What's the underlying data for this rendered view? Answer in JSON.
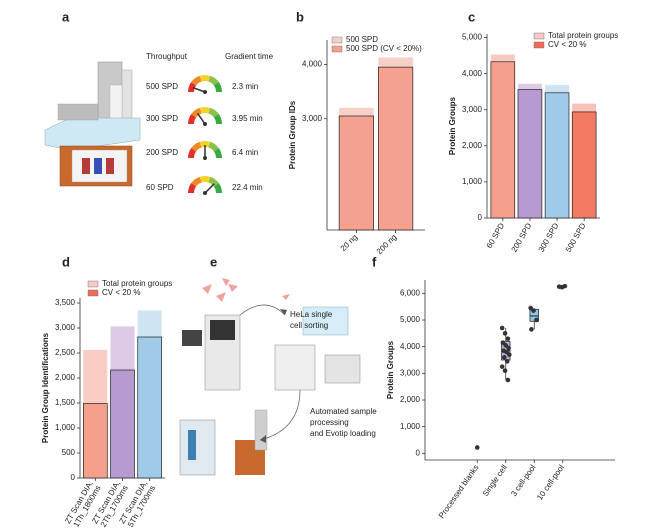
{
  "panel_labels": [
    "a",
    "b",
    "c",
    "d",
    "e",
    "f"
  ],
  "throughput": {
    "header": "Throughput",
    "gradient_header": "Gradient time",
    "rows": [
      {
        "spd": "500 SPD",
        "time": "2.3 min"
      },
      {
        "spd": "300 SPD",
        "time": "3.95 min"
      },
      {
        "spd": "200 SPD",
        "time": "6.4 min"
      },
      {
        "spd": "60 SPD",
        "time": "22.4 min"
      }
    ]
  },
  "workflow": {
    "sorting": [
      "HeLa single",
      "cell sorting"
    ],
    "processing": [
      "Automated sample",
      "processing",
      "and Evotip loading"
    ]
  },
  "chart_data": [
    {
      "type": "bar",
      "ylabel": "Protein Group IDs",
      "categories": [
        [
          "20 ng"
        ],
        [
          "200 ng"
        ]
      ],
      "series": [
        {
          "name": "500 SPD",
          "color": "#f6cfc6",
          "values": [
            3200,
            4130
          ]
        },
        {
          "name": "500 SPD (CV < 20%)",
          "color": "#f4a18f",
          "values": [
            3050,
            3950
          ]
        }
      ],
      "ylim": [
        950,
        4450
      ],
      "yticks": [
        {
          "value": 3000,
          "label": "3,000"
        },
        {
          "value": 4000,
          "label": "4,000"
        }
      ]
    },
    {
      "type": "bar",
      "ylabel": "Protein Groups",
      "categories": [
        [
          "60 SPD"
        ],
        [
          "200 SPD"
        ],
        [
          "300 SPD"
        ],
        [
          "500 SPD"
        ]
      ],
      "series": [
        {
          "name": "Total protein groups",
          "color": "#f6c9c4",
          "colors": [
            "#f8c9bf",
            "#dccbe6",
            "#cfe4f3",
            "#f8c2b6"
          ],
          "values": [
            4530,
            3720,
            3690,
            3170
          ]
        },
        {
          "name": "CV < 20 %",
          "color": "#ef6a5a",
          "colors": [
            "#f4a08d",
            "#b79bd0",
            "#9fcbe9",
            "#f17a60"
          ],
          "values": [
            4330,
            3560,
            3470,
            2940
          ]
        }
      ],
      "ylim": [
        0,
        5100
      ],
      "yticks": [
        0,
        {
          "value": 1000,
          "label": "1,000"
        },
        {
          "value": 2000,
          "label": "2,000"
        },
        {
          "value": 3000,
          "label": "3,000"
        },
        {
          "value": 4000,
          "label": "4,000"
        },
        {
          "value": 5000,
          "label": "5,000"
        }
      ]
    },
    {
      "type": "bar",
      "ylabel": "Protein Group Identifications",
      "categories": [
        [
          "ZT Scan DIA,",
          "1Th_1800ms"
        ],
        [
          "ZT Scan DIA,",
          "2Th_1700ms"
        ],
        [
          "ZT Scan DIA,",
          "5Th_1700ms"
        ]
      ],
      "series": [
        {
          "name": "Total protein groups",
          "color": "#f6c9c4",
          "colors": [
            "#f8cdc4",
            "#dcc9e6",
            "#cfe4f3"
          ],
          "values": [
            2560,
            3030,
            3350
          ]
        },
        {
          "name": "CV < 20 %",
          "color": "#ef6a5a",
          "colors": [
            "#f4a08d",
            "#b79bd0",
            "#9fcbe9"
          ],
          "values": [
            1490,
            2160,
            2820
          ]
        }
      ],
      "ylim": [
        0,
        3600
      ],
      "yticks": [
        0,
        500,
        {
          "value": 1000,
          "label": "1,000"
        },
        {
          "value": 1500,
          "label": "1,500"
        },
        {
          "value": 2000,
          "label": "2,000"
        },
        {
          "value": 2500,
          "label": "2,500"
        },
        {
          "value": 3000,
          "label": "3,000"
        },
        {
          "value": 3500,
          "label": "3,500"
        }
      ]
    },
    {
      "type": "box",
      "ylabel": "Protein Groups",
      "categories": [
        [
          "Processed blanks"
        ],
        [
          "Single cell"
        ],
        [
          "3 cell-pool"
        ],
        [
          "10 cell-pool"
        ]
      ],
      "colors": [
        null,
        "#c7a9dc",
        "#8fc5e6",
        null
      ],
      "q1": [
        null,
        3500,
        4950,
        null
      ],
      "median": [
        null,
        3850,
        5150,
        null
      ],
      "q3": [
        null,
        4200,
        5400,
        null
      ],
      "whisker_low": [
        null,
        2750,
        4650,
        null
      ],
      "whisker_high": [
        null,
        4700,
        5450,
        null
      ],
      "points": [
        [
          220
        ],
        [
          4700,
          4500,
          4300,
          4150,
          4050,
          3950,
          3850,
          3800,
          3700,
          3600,
          3450,
          3250,
          3100,
          2750
        ],
        [
          5450,
          5350,
          5000,
          4650
        ],
        [
          6250,
          6230,
          6270
        ]
      ],
      "ylim": [
        -250,
        6500
      ],
      "yticks": [
        0,
        {
          "value": 1000,
          "label": "1,000"
        },
        {
          "value": 2000,
          "label": "2,000"
        },
        {
          "value": 3000,
          "label": "3,000"
        },
        {
          "value": 4000,
          "label": "4,000"
        },
        {
          "value": 5000,
          "label": "5,000"
        },
        {
          "value": 6000,
          "label": "6,000"
        }
      ]
    }
  ]
}
